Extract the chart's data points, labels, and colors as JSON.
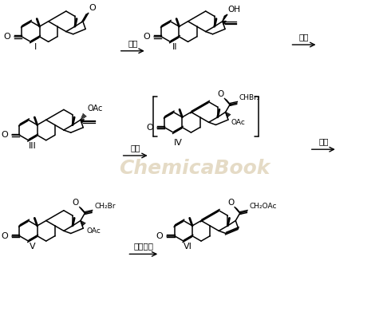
{
  "background_color": "#ffffff",
  "watermark_text": "ChemicaBook",
  "watermark_color": "#d4c4a0",
  "fig_width": 4.8,
  "fig_height": 3.91,
  "dpi": 100,
  "reaction_labels": [
    "炔化",
    "酯化",
    "加成",
    "还原",
    "置换消除"
  ]
}
